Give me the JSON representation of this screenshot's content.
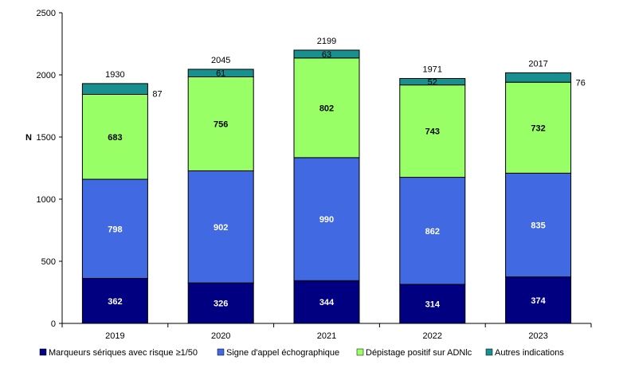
{
  "chart_data": {
    "type": "bar",
    "stacked": true,
    "categories": [
      "2019",
      "2020",
      "2021",
      "2022",
      "2023"
    ],
    "series": [
      {
        "name": "Marqueurs sériques avec risque ≥1/50",
        "color": "#000080",
        "label_color": "#ffffff",
        "values": [
          362,
          326,
          344,
          314,
          374
        ]
      },
      {
        "name": "Signe d'appel échographique",
        "color": "#4169e1",
        "label_color": "#ffffff",
        "values": [
          798,
          902,
          990,
          862,
          835
        ]
      },
      {
        "name": "Dépistage positif sur ADNlc",
        "color": "#99ff66",
        "label_color": "#000000",
        "values": [
          683,
          756,
          802,
          743,
          732
        ]
      },
      {
        "name": "Autres indications",
        "color": "#1a8f8f",
        "label_color": "#000000",
        "values": [
          87,
          61,
          63,
          52,
          76
        ]
      }
    ],
    "totals": [
      1930,
      2045,
      2199,
      1971,
      2017
    ],
    "ylabel": "N",
    "ylim": [
      0,
      2500
    ],
    "yticks": [
      0,
      500,
      1000,
      1500,
      2000,
      2500
    ],
    "grid": false,
    "legend_position": "bottom"
  }
}
